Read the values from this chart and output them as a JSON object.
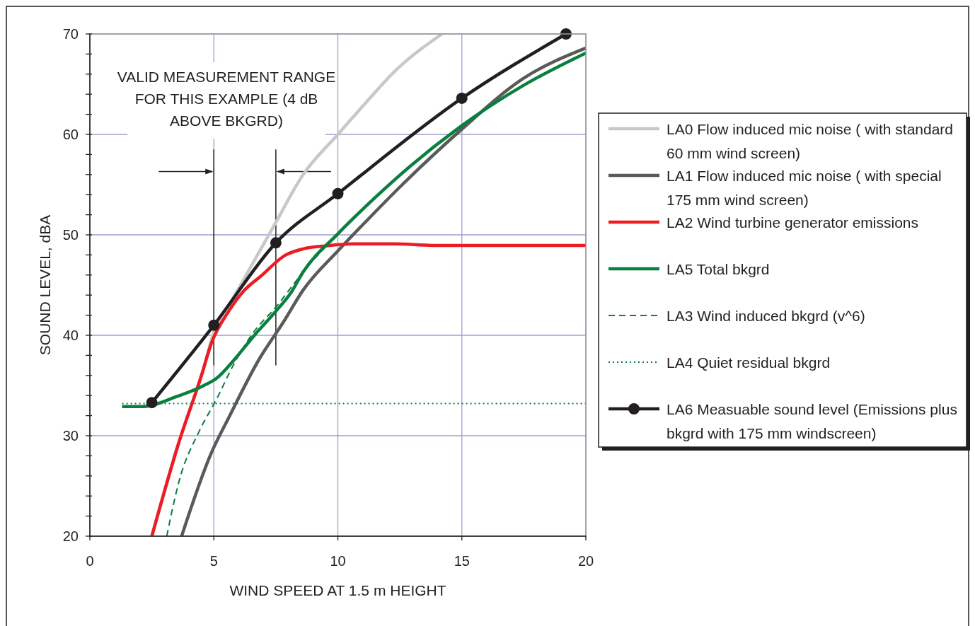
{
  "chart_data": {
    "type": "line",
    "xlabel": "WIND SPEED AT 1.5 m HEIGHT",
    "ylabel": "SOUND LEVEL, dBA",
    "xlim": [
      0,
      20
    ],
    "xticks": [
      0,
      5,
      10,
      15,
      20
    ],
    "ylim": [
      20,
      70
    ],
    "yticks": [
      20,
      {
        "value": 22,
        "label": null
      },
      {
        "value": 24,
        "label": null
      },
      {
        "value": 26,
        "label": null
      },
      {
        "value": 28,
        "label": null
      },
      30,
      {
        "value": 32,
        "label": null
      },
      {
        "value": 34,
        "label": null
      },
      {
        "value": 36,
        "label": null
      },
      {
        "value": 38,
        "label": null
      },
      40,
      {
        "value": 42,
        "label": null
      },
      {
        "value": 44,
        "label": null
      },
      {
        "value": 46,
        "label": null
      },
      {
        "value": 48,
        "label": null
      },
      50,
      {
        "value": 52,
        "label": null
      },
      {
        "value": 54,
        "label": null
      },
      {
        "value": 56,
        "label": null
      },
      {
        "value": 58,
        "label": null
      },
      60,
      {
        "value": 62,
        "label": null
      },
      {
        "value": 64,
        "label": null
      },
      {
        "value": 66,
        "label": null
      },
      {
        "value": 68,
        "label": null
      },
      70
    ],
    "grid": true,
    "legend": "right",
    "marker": "none",
    "line_style": "solid",
    "series": [
      {
        "name": "LA0 Flow induced mic noise ( with standard 60 mm wind screen)",
        "color": "#c8c8c8",
        "x": [
          2.5,
          3.6,
          4.5,
          5,
          5.8,
          7.4,
          8.6,
          10,
          11,
          12.3,
          14.2
        ],
        "values": [
          20,
          29.5,
          36,
          40.3,
          43.8,
          50.8,
          56,
          60,
          62.8,
          66.3,
          70
        ]
      },
      {
        "name": "LA1 Flow induced mic noise ( with special 175 mm wind screen)",
        "color": "#5a5a5a",
        "x": [
          3.7,
          4.9,
          5.6,
          6.8,
          7.8,
          8.6,
          10,
          11.2,
          12.6,
          14.9,
          17.5,
          20
        ],
        "values": [
          20,
          28.3,
          31.8,
          37.5,
          41.3,
          44.5,
          48.4,
          51.5,
          55,
          60.3,
          65.6,
          68.6
        ]
      },
      {
        "name": "LA2 Wind turbine generator emissions",
        "color": "#ed1c24",
        "x": [
          2.5,
          3.6,
          4.5,
          4.9,
          5.6,
          6.2,
          6.9,
          7.9,
          8.6,
          9.5,
          10.6,
          12.3,
          13.8,
          20
        ],
        "values": [
          20,
          29.4,
          36,
          39.2,
          42.4,
          44.4,
          45.9,
          48,
          48.6,
          48.9,
          49.1,
          49.1,
          48.95,
          48.95
        ]
      },
      {
        "name": "LA5 Total bkgrd",
        "color": "#0a7f3f",
        "x": [
          1.3,
          2.1,
          3.5,
          4.6,
          5.1,
          5.8,
          6.6,
          7.5,
          8.1,
          8.6,
          10,
          11.5,
          12.9,
          14.9,
          17.5,
          20
        ],
        "values": [
          32.9,
          32.9,
          33.9,
          35,
          35.7,
          37.5,
          39.9,
          42.4,
          44.2,
          46.3,
          50.1,
          53.7,
          56.8,
          60.7,
          64.9,
          68.1
        ]
      },
      {
        "name": "LA3 Wind induced bkgrd (v^6)",
        "color": "#0a7f3f",
        "line_style": "dashed",
        "x": [
          3.1,
          3.6,
          4.4,
          5.1,
          5.8,
          6.6,
          7.5,
          8.6,
          10,
          11.5,
          12.9,
          14.9,
          17.5,
          20
        ],
        "values": [
          20,
          25.5,
          30.4,
          33.6,
          37.1,
          40.3,
          42.8,
          46.3,
          50.1,
          53.7,
          56.8,
          60.7,
          64.9,
          68.1
        ]
      },
      {
        "name": "LA4 Quiet residual bkgrd",
        "color": "#0a7f3f",
        "line_style": "dotted",
        "x": [
          1.3,
          20
        ],
        "values": [
          33.2,
          33.2
        ]
      },
      {
        "name": "LA6 Measuable sound level (Emissions plus bkgrd with 175 mm windscreen)",
        "color": "#231f20",
        "marker": "circle",
        "x": [
          2.5,
          5,
          7.5,
          10,
          15,
          19.2
        ],
        "values": [
          33.3,
          41,
          49.2,
          54.1,
          63.6,
          70
        ]
      }
    ],
    "ref_lines": [
      {
        "axis": "x",
        "value": 5,
        "color": "#231f20"
      },
      {
        "axis": "x",
        "value": 7.5,
        "color": "#231f20"
      }
    ],
    "annotations": [
      "VALID MEASUREMENT RANGE FOR THIS EXAMPLE (4 dB ABOVE BKGRD)"
    ]
  }
}
